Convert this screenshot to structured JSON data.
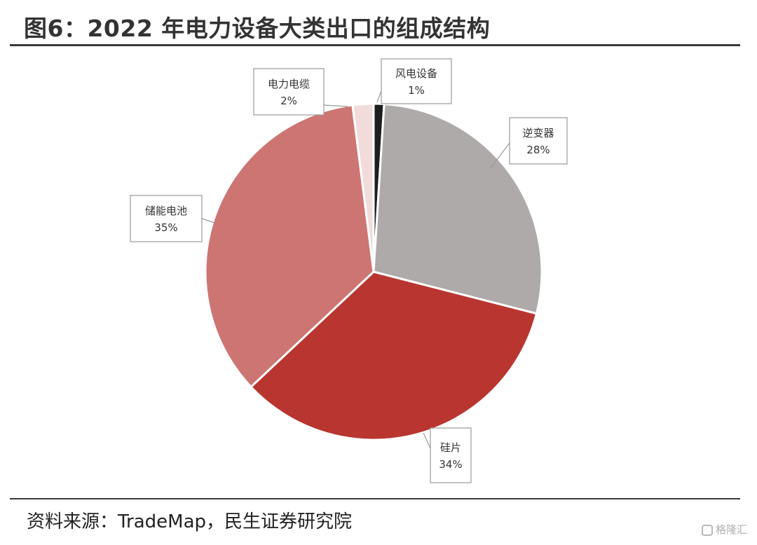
{
  "header": {
    "title": "图6：2022 年电力设备大类出口的组成结构"
  },
  "footer": {
    "source": "资料来源：TradeMap，民生证券研究院",
    "watermark": "格隆汇"
  },
  "chart_data": {
    "type": "pie",
    "title": "图6：2022 年电力设备大类出口的组成结构",
    "slices": [
      {
        "label": "风电设备",
        "value": 1,
        "display": "1%",
        "color": "#1e1e1e"
      },
      {
        "label": "逆变器",
        "value": 28,
        "display": "28%",
        "color": "#aeaaaa"
      },
      {
        "label": "硅片",
        "value": 34,
        "display": "34%",
        "color": "#b93630"
      },
      {
        "label": "储能电池",
        "value": 35,
        "display": "35%",
        "color": "#cd7572"
      },
      {
        "label": "电力电缆",
        "value": 2,
        "display": "2%",
        "color": "#f1dcdb"
      }
    ],
    "start": "12 o'clock",
    "direction": "clockwise",
    "labels": "callout boxes with leader lines"
  }
}
